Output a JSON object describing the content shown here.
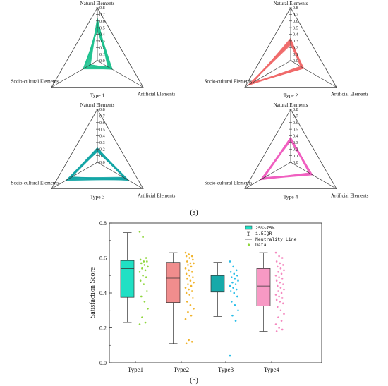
{
  "panel_a_label": "(a)",
  "panel_b_label": "(b)",
  "chart_data": [
    {
      "type": "radar",
      "caption": "Type 1",
      "axes": [
        "Natural Elements",
        "Artificial Elements",
        "Socio-cultural Elements"
      ],
      "rmin": 0.0,
      "rmax": 0.8,
      "ticks": [
        0.0,
        0.1,
        0.2,
        0.3,
        0.4,
        0.5,
        0.6,
        0.7,
        0.8
      ],
      "tick_labels": [
        "0.0",
        "0.1",
        "0.2",
        "0.3",
        "0.4",
        "0.5",
        "0.6",
        "0.7",
        "0.8"
      ],
      "color": "#1fc28f",
      "series": [
        [
          0.62,
          0.22,
          0.12
        ],
        [
          0.65,
          0.2,
          0.13
        ],
        [
          0.58,
          0.24,
          0.15
        ],
        [
          0.55,
          0.25,
          0.18
        ],
        [
          0.6,
          0.21,
          0.16
        ],
        [
          0.52,
          0.23,
          0.2
        ],
        [
          0.5,
          0.26,
          0.22
        ],
        [
          0.48,
          0.22,
          0.23
        ],
        [
          0.57,
          0.19,
          0.19
        ],
        [
          0.45,
          0.25,
          0.25
        ],
        [
          0.63,
          0.18,
          0.14
        ],
        [
          0.54,
          0.2,
          0.21
        ],
        [
          0.47,
          0.24,
          0.24
        ],
        [
          0.59,
          0.23,
          0.14
        ],
        [
          0.51,
          0.21,
          0.23
        ],
        [
          0.56,
          0.26,
          0.17
        ]
      ]
    },
    {
      "type": "radar",
      "caption": "Type 2",
      "axes": [
        "Natural Elements",
        "Artificial Elements",
        "Socio-cultural Elements"
      ],
      "rmin": 0.0,
      "rmax": 0.8,
      "ticks": [
        0.0,
        0.1,
        0.2,
        0.3,
        0.4,
        0.5,
        0.6,
        0.7,
        0.8
      ],
      "tick_labels": [
        "0.0",
        "0.1",
        "0.2",
        "0.3",
        "0.4",
        "0.5",
        "0.6",
        "0.7",
        "0.8"
      ],
      "color": "#f06b6b",
      "series": [
        [
          0.3,
          0.2,
          0.7
        ],
        [
          0.28,
          0.22,
          0.72
        ],
        [
          0.32,
          0.18,
          0.68
        ],
        [
          0.26,
          0.21,
          0.74
        ],
        [
          0.33,
          0.19,
          0.66
        ],
        [
          0.25,
          0.23,
          0.71
        ],
        [
          0.29,
          0.17,
          0.73
        ],
        [
          0.31,
          0.22,
          0.69
        ],
        [
          0.27,
          0.2,
          0.75
        ],
        [
          0.34,
          0.21,
          0.65
        ],
        [
          0.24,
          0.19,
          0.72
        ],
        [
          0.3,
          0.23,
          0.67
        ],
        [
          0.28,
          0.18,
          0.7
        ],
        [
          0.32,
          0.2,
          0.71
        ],
        [
          0.26,
          0.22,
          0.69
        ],
        [
          0.29,
          0.21,
          0.73
        ]
      ]
    },
    {
      "type": "radar",
      "caption": "Type 3",
      "axes": [
        "Natural Elements",
        "Artificial Elements",
        "Socio-cultural Elements"
      ],
      "rmin": 0.0,
      "rmax": 0.8,
      "ticks": [
        0.0,
        0.1,
        0.2,
        0.3,
        0.4,
        0.5,
        0.6,
        0.7,
        0.8
      ],
      "tick_labels": [
        "0.0",
        "0.1",
        "0.2",
        "0.3",
        "0.4",
        "0.5",
        "0.6",
        "0.7",
        "0.8"
      ],
      "color": "#14a6a6",
      "series": [
        [
          0.22,
          0.5,
          0.45
        ],
        [
          0.2,
          0.48,
          0.5
        ],
        [
          0.19,
          0.52,
          0.48
        ],
        [
          0.18,
          0.46,
          0.52
        ],
        [
          0.21,
          0.55,
          0.44
        ],
        [
          0.17,
          0.5,
          0.54
        ],
        [
          0.2,
          0.45,
          0.47
        ],
        [
          0.16,
          0.53,
          0.5
        ],
        [
          0.19,
          0.49,
          0.46
        ],
        [
          0.22,
          0.47,
          0.53
        ],
        [
          0.18,
          0.51,
          0.49
        ],
        [
          0.21,
          0.54,
          0.51
        ],
        [
          0.17,
          0.48,
          0.45
        ],
        [
          0.2,
          0.52,
          0.55
        ],
        [
          0.19,
          0.46,
          0.5
        ],
        [
          0.18,
          0.5,
          0.48
        ]
      ]
    },
    {
      "type": "radar",
      "caption": "Type 4",
      "axes": [
        "Natural Elements",
        "Artificial Elements",
        "Socio-cultural Elements"
      ],
      "rmin": 0.0,
      "rmax": 0.8,
      "ticks": [
        0.0,
        0.1,
        0.2,
        0.3,
        0.4,
        0.5,
        0.6,
        0.7,
        0.8
      ],
      "tick_labels": [
        "0.0",
        "0.1",
        "0.2",
        "0.3",
        "0.4",
        "0.5",
        "0.6",
        "0.7",
        "0.8"
      ],
      "color": "#f05fc0",
      "series": [
        [
          0.38,
          0.35,
          0.5
        ],
        [
          0.35,
          0.37,
          0.48
        ],
        [
          0.36,
          0.33,
          0.52
        ],
        [
          0.34,
          0.36,
          0.47
        ],
        [
          0.37,
          0.38,
          0.49
        ],
        [
          0.33,
          0.34,
          0.51
        ],
        [
          0.36,
          0.36,
          0.46
        ],
        [
          0.35,
          0.32,
          0.5
        ],
        [
          0.32,
          0.35,
          0.53
        ],
        [
          0.38,
          0.37,
          0.47
        ],
        [
          0.34,
          0.33,
          0.49
        ],
        [
          0.36,
          0.35,
          0.52
        ],
        [
          0.33,
          0.36,
          0.48
        ],
        [
          0.37,
          0.34,
          0.5
        ],
        [
          0.35,
          0.38,
          0.51
        ],
        [
          0.34,
          0.35,
          0.46
        ]
      ]
    },
    {
      "type": "box",
      "categories": [
        "Type1",
        "Type2",
        "Type3",
        "Type4"
      ],
      "ylabel": "Satisfaction Score",
      "ylim": [
        0.0,
        0.8
      ],
      "yticks": [
        0.0,
        0.2,
        0.4,
        0.6,
        0.8
      ],
      "ytick_labels": [
        "0.0",
        "0.2",
        "0.4",
        "0.6",
        "0.8"
      ],
      "legend": {
        "position": "top-right",
        "entries": [
          "25%~75%",
          "1.5IQR",
          "Neutrality Line",
          "Data"
        ]
      },
      "series": [
        {
          "category": "Type1",
          "box_color": "#20e0c4",
          "point_color": "#8ed63c",
          "q1": 0.375,
          "median": 0.54,
          "q3": 0.585,
          "whisker_low": 0.23,
          "whisker_high": 0.745,
          "points": [
            0.75,
            0.72,
            0.6,
            0.59,
            0.58,
            0.58,
            0.57,
            0.56,
            0.55,
            0.54,
            0.53,
            0.52,
            0.5,
            0.49,
            0.47,
            0.45,
            0.41,
            0.38,
            0.35,
            0.31,
            0.26,
            0.23,
            0.22
          ]
        },
        {
          "category": "Type2",
          "box_color": "#f08d8d",
          "point_color": "#f0b32c",
          "q1": 0.345,
          "median": 0.485,
          "q3": 0.575,
          "whisker_low": 0.11,
          "whisker_high": 0.63,
          "points": [
            0.63,
            0.62,
            0.61,
            0.61,
            0.6,
            0.59,
            0.58,
            0.57,
            0.57,
            0.56,
            0.55,
            0.54,
            0.53,
            0.52,
            0.51,
            0.5,
            0.49,
            0.48,
            0.47,
            0.46,
            0.45,
            0.44,
            0.43,
            0.42,
            0.41,
            0.4,
            0.39,
            0.37,
            0.35,
            0.33,
            0.31,
            0.29,
            0.27,
            0.25,
            0.13,
            0.12,
            0.11
          ]
        },
        {
          "category": "Type3",
          "box_color": "#17a9a9",
          "point_color": "#28bde8",
          "q1": 0.405,
          "median": 0.45,
          "q3": 0.5,
          "whisker_low": 0.265,
          "whisker_high": 0.575,
          "points": [
            0.58,
            0.55,
            0.53,
            0.52,
            0.51,
            0.5,
            0.49,
            0.48,
            0.47,
            0.46,
            0.45,
            0.44,
            0.43,
            0.42,
            0.41,
            0.4,
            0.38,
            0.35,
            0.33,
            0.3,
            0.27,
            0.24,
            0.04
          ]
        },
        {
          "category": "Type4",
          "box_color": "#f799c4",
          "point_color": "#f488bf",
          "q1": 0.325,
          "median": 0.44,
          "q3": 0.54,
          "whisker_low": 0.18,
          "whisker_high": 0.63,
          "points": [
            0.63,
            0.61,
            0.6,
            0.58,
            0.57,
            0.56,
            0.55,
            0.54,
            0.53,
            0.52,
            0.51,
            0.5,
            0.49,
            0.48,
            0.47,
            0.46,
            0.45,
            0.44,
            0.43,
            0.42,
            0.41,
            0.4,
            0.39,
            0.38,
            0.37,
            0.36,
            0.35,
            0.34,
            0.32,
            0.3,
            0.28,
            0.26,
            0.24,
            0.22,
            0.2,
            0.19,
            0.18
          ]
        }
      ]
    }
  ]
}
